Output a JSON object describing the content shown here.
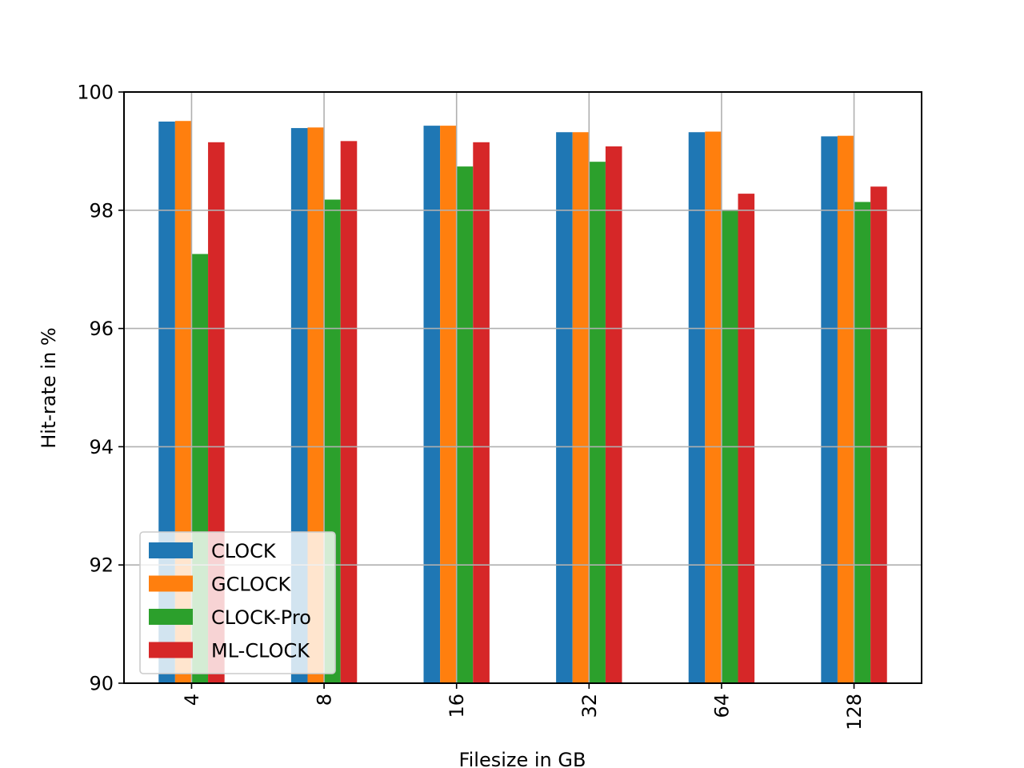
{
  "chart_data": {
    "type": "bar",
    "title": "",
    "xlabel": "Filesize in GB",
    "ylabel": "Hit-rate in %",
    "categories": [
      "4",
      "8",
      "16",
      "32",
      "64",
      "128"
    ],
    "ylim": [
      90,
      100
    ],
    "yticks": [
      "90",
      "92",
      "94",
      "96",
      "98",
      "100"
    ],
    "grid": true,
    "legend_position": "bottom-left",
    "series": [
      {
        "name": "CLOCK",
        "color": "#1f77b4",
        "values": [
          99.5,
          99.39,
          99.43,
          99.32,
          99.32,
          99.25
        ]
      },
      {
        "name": "GCLOCK",
        "color": "#ff7f0e",
        "values": [
          99.51,
          99.4,
          99.43,
          99.32,
          99.33,
          99.26
        ]
      },
      {
        "name": "CLOCK-Pro",
        "color": "#2ca02c",
        "values": [
          97.26,
          98.18,
          98.74,
          98.82,
          97.99,
          98.14
        ]
      },
      {
        "name": "ML-CLOCK",
        "color": "#d62728",
        "values": [
          99.15,
          99.17,
          99.15,
          99.08,
          98.28,
          98.4
        ]
      }
    ]
  }
}
